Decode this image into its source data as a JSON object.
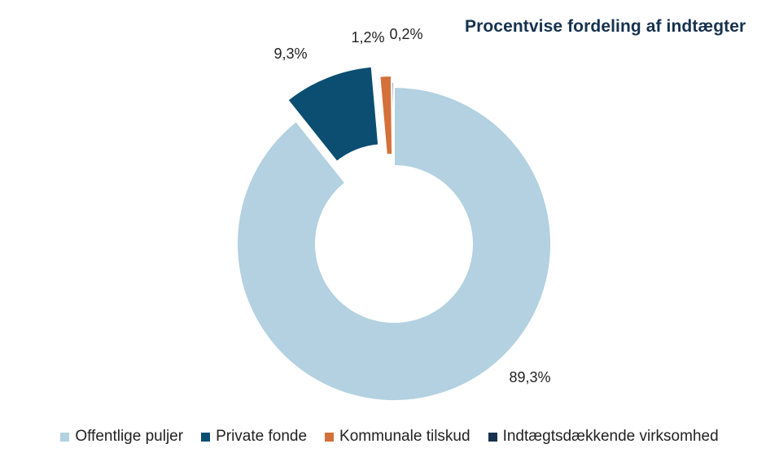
{
  "chart_data": {
    "type": "pie",
    "title": "Procentvise fordeling af indtægter",
    "series": [
      {
        "name": "Offentlige puljer",
        "value": 89.3,
        "label": "89,3%",
        "color": "#b3d1e0"
      },
      {
        "name": "Private fonde",
        "value": 9.3,
        "label": "9,3%",
        "color": "#0b4e72"
      },
      {
        "name": "Kommunale tilskud",
        "value": 1.2,
        "label": "1,2%",
        "color": "#d4703a"
      },
      {
        "name": "Indtægtsdækkende virksomhed",
        "value": 0.2,
        "label": "0,2%",
        "color": "#16324f"
      }
    ],
    "legend_position": "bottom",
    "donut": true
  }
}
